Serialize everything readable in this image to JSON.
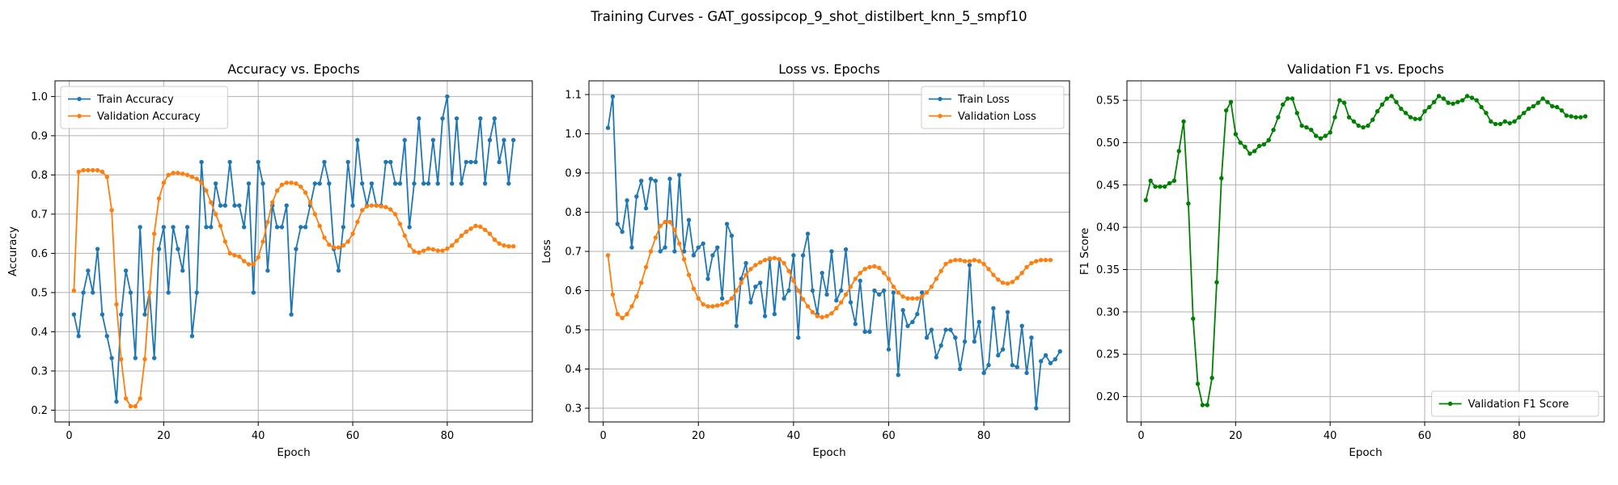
{
  "figure_title": "Training Curves - GAT_gossipcop_9_shot_distilbert_knn_5_smpf10",
  "chart_data": [
    {
      "type": "line",
      "title": "Accuracy vs. Epochs",
      "xlabel": "Epoch",
      "ylabel": "Accuracy",
      "xlim": [
        -3,
        98
      ],
      "ylim": [
        0.17,
        1.04
      ],
      "xticks": [
        0,
        20,
        40,
        60,
        80
      ],
      "yticks": [
        0.2,
        0.3,
        0.4,
        0.5,
        0.6,
        0.7,
        0.8,
        0.9,
        1.0
      ],
      "ytick_labels": [
        "0.2",
        "0.3",
        "0.4",
        "0.5",
        "0.6",
        "0.7",
        "0.8",
        "0.9",
        "1.0"
      ],
      "grid": true,
      "legend": "upper-left",
      "x_start": 1,
      "series": [
        {
          "name": "Train Accuracy",
          "color": "#1f77b4",
          "values": [
            0.444,
            0.389,
            0.5,
            0.556,
            0.5,
            0.611,
            0.444,
            0.389,
            0.333,
            0.222,
            0.444,
            0.556,
            0.5,
            0.333,
            0.667,
            0.444,
            0.5,
            0.333,
            0.611,
            0.667,
            0.5,
            0.667,
            0.611,
            0.556,
            0.667,
            0.389,
            0.5,
            0.833,
            0.667,
            0.667,
            0.778,
            0.722,
            0.722,
            0.833,
            0.722,
            0.722,
            0.667,
            0.778,
            0.5,
            0.833,
            0.778,
            0.556,
            0.722,
            0.667,
            0.667,
            0.722,
            0.444,
            0.611,
            0.667,
            0.667,
            0.722,
            0.778,
            0.778,
            0.833,
            0.778,
            0.611,
            0.556,
            0.667,
            0.833,
            0.722,
            0.889,
            0.778,
            0.722,
            0.778,
            0.722,
            0.722,
            0.833,
            0.833,
            0.778,
            0.778,
            0.889,
            0.667,
            0.778,
            0.944,
            0.778,
            0.778,
            0.889,
            0.778,
            0.944,
            1.0,
            0.778,
            0.944,
            0.778,
            0.833,
            0.833,
            0.833,
            0.944,
            0.778,
            0.889,
            0.944,
            0.833,
            0.889,
            0.778,
            0.889
          ]
        },
        {
          "name": "Validation Accuracy",
          "color": "#ff7f0e",
          "values": [
            0.505,
            0.808,
            0.812,
            0.812,
            0.812,
            0.812,
            0.808,
            0.795,
            0.71,
            0.47,
            0.33,
            0.23,
            0.21,
            0.21,
            0.23,
            0.33,
            0.5,
            0.65,
            0.74,
            0.78,
            0.8,
            0.805,
            0.805,
            0.803,
            0.8,
            0.795,
            0.79,
            0.78,
            0.76,
            0.73,
            0.7,
            0.67,
            0.63,
            0.6,
            0.595,
            0.592,
            0.58,
            0.572,
            0.572,
            0.59,
            0.63,
            0.68,
            0.73,
            0.76,
            0.775,
            0.78,
            0.78,
            0.778,
            0.77,
            0.755,
            0.73,
            0.7,
            0.67,
            0.64,
            0.622,
            0.615,
            0.615,
            0.62,
            0.63,
            0.65,
            0.68,
            0.71,
            0.72,
            0.722,
            0.722,
            0.72,
            0.718,
            0.712,
            0.7,
            0.675,
            0.645,
            0.62,
            0.605,
            0.602,
            0.607,
            0.612,
            0.61,
            0.607,
            0.607,
            0.612,
            0.62,
            0.632,
            0.645,
            0.655,
            0.663,
            0.67,
            0.668,
            0.66,
            0.65,
            0.635,
            0.625,
            0.62,
            0.618,
            0.618
          ]
        }
      ]
    },
    {
      "type": "line",
      "title": "Loss vs. Epochs",
      "xlabel": "Epoch",
      "ylabel": "Loss",
      "xlim": [
        -3,
        98
      ],
      "ylim": [
        0.265,
        1.135
      ],
      "xticks": [
        0,
        20,
        40,
        60,
        80
      ],
      "yticks": [
        0.3,
        0.4,
        0.5,
        0.6,
        0.7,
        0.8,
        0.9,
        1.0,
        1.1
      ],
      "ytick_labels": [
        "0.3",
        "0.4",
        "0.5",
        "0.6",
        "0.7",
        "0.8",
        "0.9",
        "1.0",
        "1.1"
      ],
      "grid": true,
      "legend": "upper-right",
      "x_start": 1,
      "series": [
        {
          "name": "Train Loss",
          "color": "#1f77b4",
          "values": [
            1.015,
            1.095,
            0.77,
            0.75,
            0.83,
            0.71,
            0.84,
            0.88,
            0.81,
            0.885,
            0.88,
            0.7,
            0.71,
            0.885,
            0.7,
            0.895,
            0.7,
            0.78,
            0.69,
            0.71,
            0.72,
            0.63,
            0.69,
            0.71,
            0.58,
            0.77,
            0.74,
            0.51,
            0.63,
            0.67,
            0.57,
            0.61,
            0.62,
            0.535,
            0.68,
            0.54,
            0.68,
            0.58,
            0.6,
            0.69,
            0.48,
            0.69,
            0.745,
            0.6,
            0.54,
            0.645,
            0.59,
            0.7,
            0.575,
            0.6,
            0.705,
            0.57,
            0.515,
            0.625,
            0.495,
            0.495,
            0.6,
            0.59,
            0.6,
            0.45,
            0.595,
            0.385,
            0.55,
            0.51,
            0.52,
            0.54,
            0.595,
            0.48,
            0.5,
            0.43,
            0.46,
            0.5,
            0.5,
            0.48,
            0.4,
            0.47,
            0.665,
            0.47,
            0.52,
            0.39,
            0.41,
            0.555,
            0.435,
            0.45,
            0.545,
            0.41,
            0.405,
            0.51,
            0.39,
            0.48,
            0.3,
            0.42,
            0.435,
            0.415,
            0.425,
            0.445
          ]
        },
        {
          "name": "Validation Loss",
          "color": "#ff7f0e",
          "values": [
            0.69,
            0.59,
            0.54,
            0.53,
            0.54,
            0.56,
            0.585,
            0.62,
            0.66,
            0.7,
            0.735,
            0.765,
            0.775,
            0.775,
            0.755,
            0.72,
            0.68,
            0.64,
            0.605,
            0.58,
            0.565,
            0.56,
            0.56,
            0.562,
            0.565,
            0.57,
            0.58,
            0.6,
            0.62,
            0.64,
            0.655,
            0.665,
            0.672,
            0.678,
            0.682,
            0.683,
            0.68,
            0.67,
            0.65,
            0.625,
            0.6,
            0.578,
            0.56,
            0.545,
            0.535,
            0.532,
            0.535,
            0.542,
            0.555,
            0.57,
            0.59,
            0.61,
            0.63,
            0.645,
            0.655,
            0.66,
            0.662,
            0.658,
            0.645,
            0.63,
            0.61,
            0.595,
            0.585,
            0.58,
            0.58,
            0.58,
            0.585,
            0.595,
            0.61,
            0.63,
            0.65,
            0.668,
            0.675,
            0.678,
            0.678,
            0.675,
            0.675,
            0.678,
            0.675,
            0.668,
            0.655,
            0.64,
            0.628,
            0.62,
            0.618,
            0.622,
            0.632,
            0.645,
            0.66,
            0.67,
            0.675,
            0.678,
            0.678,
            0.678
          ]
        }
      ]
    },
    {
      "type": "line",
      "title": "Validation F1 vs. Epochs",
      "xlabel": "Epoch",
      "ylabel": "F1 Score",
      "xlim": [
        -3,
        98
      ],
      "ylim": [
        0.17,
        0.573
      ],
      "xticks": [
        0,
        20,
        40,
        60,
        80
      ],
      "yticks": [
        0.2,
        0.25,
        0.3,
        0.35,
        0.4,
        0.45,
        0.5,
        0.55
      ],
      "ytick_labels": [
        "0.20",
        "0.25",
        "0.30",
        "0.35",
        "0.40",
        "0.45",
        "0.50",
        "0.55"
      ],
      "grid": true,
      "legend": "lower-right",
      "x_start": 1,
      "series": [
        {
          "name": "Validation F1 Score",
          "color": "#008000",
          "values": [
            0.432,
            0.455,
            0.448,
            0.448,
            0.448,
            0.452,
            0.455,
            0.49,
            0.525,
            0.428,
            0.292,
            0.215,
            0.19,
            0.19,
            0.222,
            0.335,
            0.458,
            0.538,
            0.548,
            0.51,
            0.5,
            0.495,
            0.487,
            0.49,
            0.496,
            0.498,
            0.503,
            0.515,
            0.53,
            0.545,
            0.552,
            0.552,
            0.535,
            0.52,
            0.518,
            0.515,
            0.508,
            0.505,
            0.508,
            0.512,
            0.53,
            0.55,
            0.547,
            0.53,
            0.525,
            0.52,
            0.518,
            0.52,
            0.527,
            0.537,
            0.545,
            0.552,
            0.555,
            0.548,
            0.54,
            0.535,
            0.53,
            0.528,
            0.528,
            0.537,
            0.542,
            0.548,
            0.555,
            0.552,
            0.547,
            0.546,
            0.548,
            0.55,
            0.555,
            0.553,
            0.55,
            0.542,
            0.535,
            0.525,
            0.522,
            0.522,
            0.525,
            0.523,
            0.525,
            0.53,
            0.535,
            0.54,
            0.543,
            0.547,
            0.552,
            0.548,
            0.543,
            0.542,
            0.538,
            0.532,
            0.531,
            0.53,
            0.53,
            0.531
          ]
        }
      ]
    }
  ]
}
